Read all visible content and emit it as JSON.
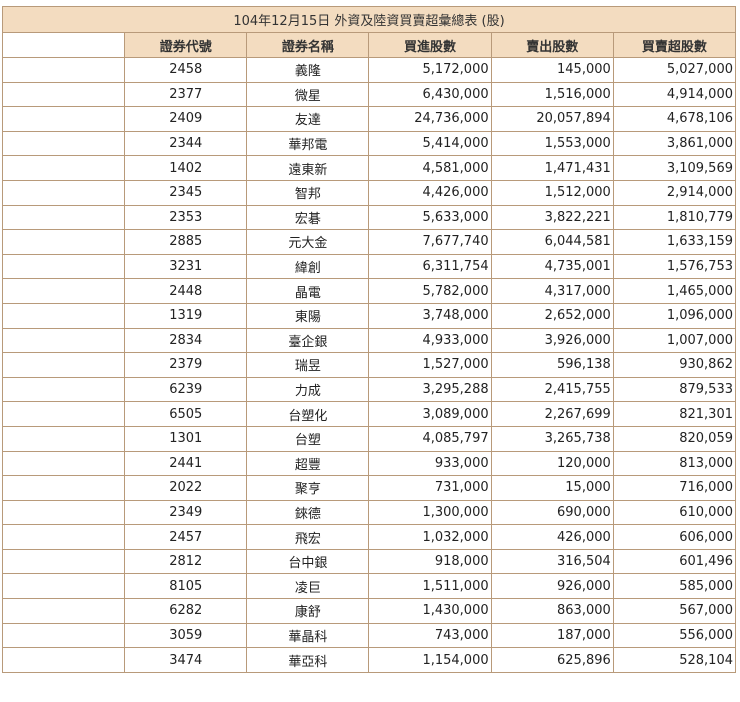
{
  "caption": "104年12月15日 外資及陸資買賣超彙總表 (股)",
  "headers": [
    "證券代號",
    "證券名稱",
    "買進股數",
    "賣出股數",
    "買賣超股數"
  ],
  "rows": [
    [
      "2458",
      "義隆",
      "5,172,000",
      "145,000",
      "5,027,000"
    ],
    [
      "2377",
      "微星",
      "6,430,000",
      "1,516,000",
      "4,914,000"
    ],
    [
      "2409",
      "友達",
      "24,736,000",
      "20,057,894",
      "4,678,106"
    ],
    [
      "2344",
      "華邦電",
      "5,414,000",
      "1,553,000",
      "3,861,000"
    ],
    [
      "1402",
      "遠東新",
      "4,581,000",
      "1,471,431",
      "3,109,569"
    ],
    [
      "2345",
      "智邦",
      "4,426,000",
      "1,512,000",
      "2,914,000"
    ],
    [
      "2353",
      "宏碁",
      "5,633,000",
      "3,822,221",
      "1,810,779"
    ],
    [
      "2885",
      "元大金",
      "7,677,740",
      "6,044,581",
      "1,633,159"
    ],
    [
      "3231",
      "緯創",
      "6,311,754",
      "4,735,001",
      "1,576,753"
    ],
    [
      "2448",
      "晶電",
      "5,782,000",
      "4,317,000",
      "1,465,000"
    ],
    [
      "1319",
      "東陽",
      "3,748,000",
      "2,652,000",
      "1,096,000"
    ],
    [
      "2834",
      "臺企銀",
      "4,933,000",
      "3,926,000",
      "1,007,000"
    ],
    [
      "2379",
      "瑞昱",
      "1,527,000",
      "596,138",
      "930,862"
    ],
    [
      "6239",
      "力成",
      "3,295,288",
      "2,415,755",
      "879,533"
    ],
    [
      "6505",
      "台塑化",
      "3,089,000",
      "2,267,699",
      "821,301"
    ],
    [
      "1301",
      "台塑",
      "4,085,797",
      "3,265,738",
      "820,059"
    ],
    [
      "2441",
      "超豐",
      "933,000",
      "120,000",
      "813,000"
    ],
    [
      "2022",
      "聚亨",
      "731,000",
      "15,000",
      "716,000"
    ],
    [
      "2349",
      "錸德",
      "1,300,000",
      "690,000",
      "610,000"
    ],
    [
      "2457",
      "飛宏",
      "1,032,000",
      "426,000",
      "606,000"
    ],
    [
      "2812",
      "台中銀",
      "918,000",
      "316,504",
      "601,496"
    ],
    [
      "8105",
      "凌巨",
      "1,511,000",
      "926,000",
      "585,000"
    ],
    [
      "6282",
      "康舒",
      "1,430,000",
      "863,000",
      "567,000"
    ],
    [
      "3059",
      "華晶科",
      "743,000",
      "187,000",
      "556,000"
    ],
    [
      "3474",
      "華亞科",
      "1,154,000",
      "625,896",
      "528,104"
    ]
  ]
}
